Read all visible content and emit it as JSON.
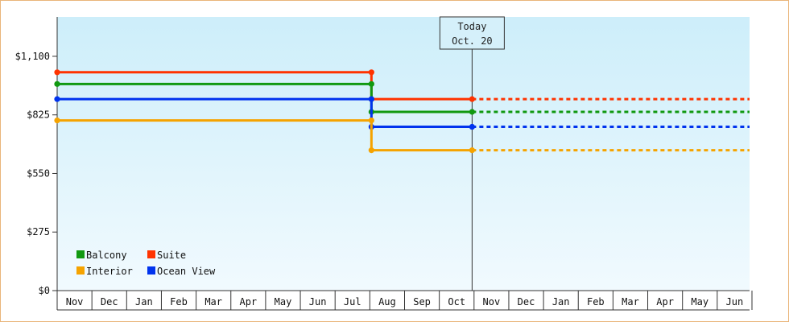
{
  "chart_data": {
    "type": "line",
    "step": true,
    "y_ticks": [
      0,
      275,
      550,
      825,
      1100
    ],
    "y_tick_labels": [
      "$0",
      "$275",
      "$550",
      "$825",
      "$1,100"
    ],
    "ylim": [
      0,
      1285
    ],
    "x_months": [
      "Nov",
      "Dec",
      "Jan",
      "Feb",
      "Mar",
      "Apr",
      "May",
      "Jun",
      "Jul",
      "Aug",
      "Sep",
      "Oct",
      "Nov",
      "Dec",
      "Jan",
      "Feb",
      "Mar",
      "Apr",
      "May",
      "Jun"
    ],
    "today_marker": {
      "line1": "Today",
      "line2": "Oct. 20"
    },
    "grid": false,
    "legend_placement": "bottom-left",
    "series": [
      {
        "name": "Suite",
        "color": "#ff3300",
        "points": [
          {
            "x": "Nov",
            "y": 1025
          },
          {
            "x": "Aug",
            "y": 1025
          },
          {
            "x": "Aug",
            "y": 899
          },
          {
            "x": "Oct",
            "y": 899
          }
        ],
        "projected": 899
      },
      {
        "name": "Balcony",
        "color": "#119911",
        "points": [
          {
            "x": "Nov",
            "y": 970
          },
          {
            "x": "Aug",
            "y": 970
          },
          {
            "x": "Aug",
            "y": 839
          },
          {
            "x": "Oct",
            "y": 839
          }
        ],
        "projected": 839
      },
      {
        "name": "Ocean View",
        "color": "#0033ee",
        "points": [
          {
            "x": "Nov",
            "y": 899
          },
          {
            "x": "Aug",
            "y": 899
          },
          {
            "x": "Aug",
            "y": 769
          },
          {
            "x": "Oct",
            "y": 769
          }
        ],
        "projected": 769
      },
      {
        "name": "Interior",
        "color": "#f5a300",
        "points": [
          {
            "x": "Nov",
            "y": 799
          },
          {
            "x": "Aug",
            "y": 799
          },
          {
            "x": "Aug",
            "y": 659
          },
          {
            "x": "Oct",
            "y": 659
          }
        ],
        "projected": 659
      }
    ],
    "legend": [
      {
        "label": "Balcony",
        "color": "#119911"
      },
      {
        "label": "Suite",
        "color": "#ff3300"
      },
      {
        "label": "Interior",
        "color": "#f5a300"
      },
      {
        "label": "Ocean View",
        "color": "#0033ee"
      }
    ]
  }
}
